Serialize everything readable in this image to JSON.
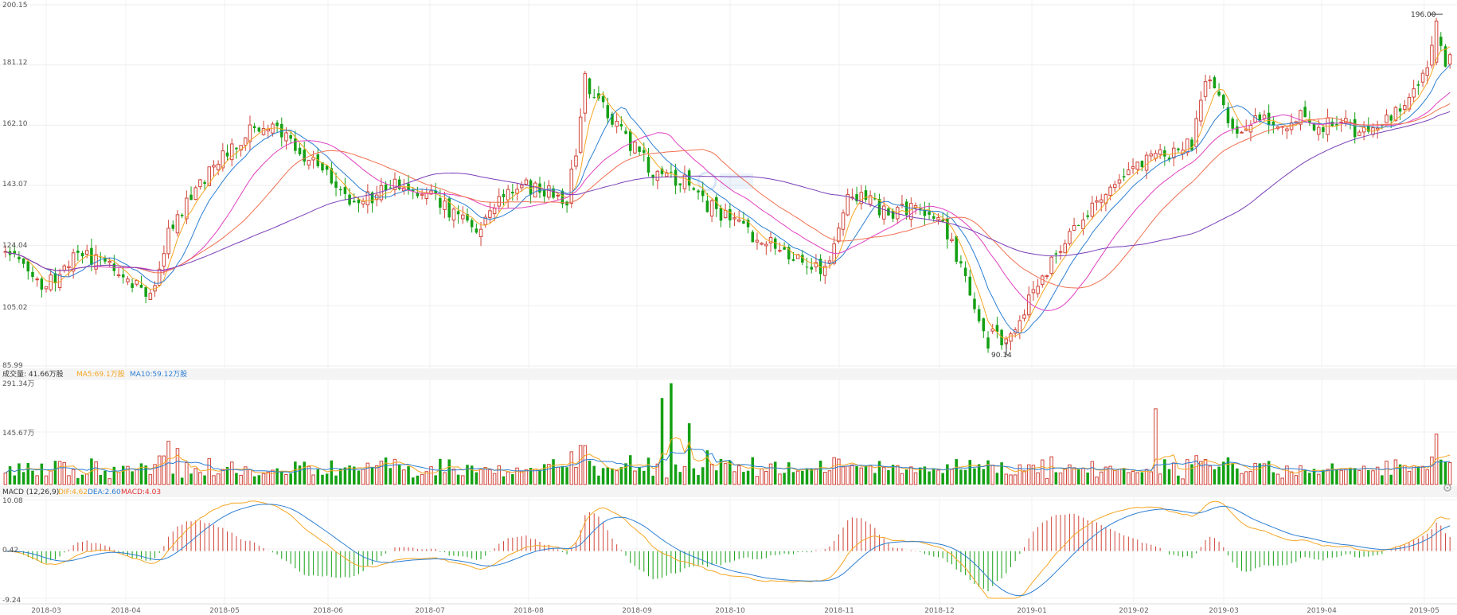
{
  "chart_data": {
    "type": "candlestick",
    "price_axis": {
      "ticks": [
        "200.15",
        "181.12",
        "162.10",
        "143.07",
        "124.04",
        "105.02",
        "85.99"
      ],
      "ylim": [
        85.99,
        200.15
      ]
    },
    "price_annotations": {
      "high": "196.00",
      "low": "90.14"
    },
    "months": [
      "2018-03",
      "2018-04",
      "2018-05",
      "2018-06",
      "2018-07",
      "2018-08",
      "2018-09",
      "2018-10",
      "2018-11",
      "2018-12",
      "2019-01",
      "2019-02",
      "2019-03",
      "2019-04",
      "2019-05"
    ],
    "volume": {
      "legend": {
        "label": "成交量: 41.66万股",
        "ma5": "MA5:69.1万股",
        "ma10": "MA10:59.12万股"
      },
      "ticks": [
        "291.34万",
        "145.67万"
      ],
      "ylim": [
        0,
        291.34
      ]
    },
    "macd": {
      "legend": {
        "label": "MACD (12,26,9)",
        "dif": "DIF:4.62",
        "dea": "DEA:2.60",
        "macd": "MACD:4.03"
      },
      "ticks": [
        "10.08",
        "0.42",
        "-9.24"
      ],
      "ylim": [
        -9.24,
        10.08
      ]
    },
    "ma_lines": [
      {
        "color": "#f5a623"
      },
      {
        "color": "#2d7fd3"
      },
      {
        "color": "#e040c0"
      },
      {
        "color": "#f07050"
      },
      {
        "color": "#7b3fb8"
      }
    ],
    "price_keypoints": [
      [
        0,
        122
      ],
      [
        8,
        110
      ],
      [
        16,
        122
      ],
      [
        22,
        118
      ],
      [
        28,
        112
      ],
      [
        32,
        107
      ],
      [
        36,
        128
      ],
      [
        40,
        138
      ],
      [
        44,
        146
      ],
      [
        50,
        156
      ],
      [
        56,
        162
      ],
      [
        60,
        160
      ],
      [
        66,
        152
      ],
      [
        72,
        146
      ],
      [
        76,
        136
      ],
      [
        82,
        140
      ],
      [
        88,
        144
      ],
      [
        94,
        140
      ],
      [
        100,
        132
      ],
      [
        104,
        130
      ],
      [
        108,
        136
      ],
      [
        112,
        143
      ],
      [
        118,
        142
      ],
      [
        124,
        138
      ],
      [
        126,
        154
      ],
      [
        128,
        176
      ],
      [
        132,
        168
      ],
      [
        138,
        156
      ],
      [
        144,
        146
      ],
      [
        150,
        144
      ],
      [
        154,
        138
      ],
      [
        160,
        132
      ],
      [
        166,
        126
      ],
      [
        170,
        124
      ],
      [
        174,
        120
      ],
      [
        178,
        116
      ],
      [
        182,
        118
      ],
      [
        186,
        140
      ],
      [
        190,
        138
      ],
      [
        196,
        134
      ],
      [
        202,
        136
      ],
      [
        208,
        128
      ],
      [
        212,
        112
      ],
      [
        216,
        98
      ],
      [
        220,
        94
      ],
      [
        224,
        100
      ],
      [
        228,
        112
      ],
      [
        234,
        126
      ],
      [
        240,
        136
      ],
      [
        246,
        144
      ],
      [
        252,
        152
      ],
      [
        258,
        154
      ],
      [
        262,
        156
      ],
      [
        265,
        176
      ],
      [
        268,
        170
      ],
      [
        272,
        160
      ],
      [
        278,
        164
      ],
      [
        282,
        162
      ],
      [
        286,
        166
      ],
      [
        290,
        160
      ],
      [
        294,
        164
      ],
      [
        298,
        160
      ],
      [
        302,
        162
      ],
      [
        306,
        165
      ],
      [
        310,
        172
      ],
      [
        313,
        176
      ],
      [
        316,
        190
      ],
      [
        318,
        182
      ]
    ]
  }
}
